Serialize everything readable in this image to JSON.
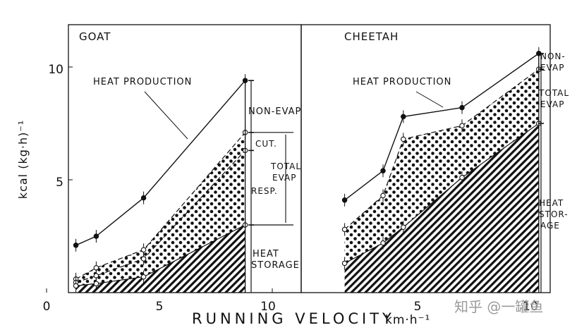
{
  "chart_data": [
    {
      "type": "area",
      "title": "GOAT",
      "xlabel": "RUNNING VELOCITY",
      "xunit": "km·h⁻¹",
      "ylabel": "kcal (kg·h)⁻¹",
      "xlim": [
        0,
        11.5
      ],
      "ylim": [
        0,
        11.8
      ],
      "xticks": [
        "0",
        "5",
        "10"
      ],
      "yticks": [
        "5",
        "10"
      ],
      "series": [
        {
          "name": "HEAT PRODUCTION",
          "x": [
            1.3,
            2.2,
            4.3,
            8.8
          ],
          "y": [
            2.1,
            2.5,
            4.2,
            9.4
          ]
        },
        {
          "x": [
            1.3,
            2.2,
            4.3,
            8.8
          ],
          "y": [
            0.6,
            1.1,
            1.9,
            7.1
          ]
        },
        {
          "x": [
            1.3,
            2.2,
            4.3,
            8.8
          ],
          "y": [
            0.45,
            0.75,
            1.5,
            6.3
          ]
        },
        {
          "x": [
            1.3,
            2.2,
            4.3,
            8.8
          ],
          "y": [
            0.3,
            0.4,
            0.7,
            3.0
          ]
        }
      ],
      "annotations": [
        "HEAT PRODUCTION",
        "NON-EVAP",
        "CUT.",
        "TOTAL EVAP",
        "RESP.",
        "HEAT STORAGE"
      ]
    },
    {
      "type": "area",
      "title": "CHEETAH",
      "xlabel": "RUNNING VELOCITY",
      "xunit": "km·h⁻¹",
      "xlim": [
        0,
        11.5
      ],
      "ylim": [
        0,
        11.8
      ],
      "xticks": [
        "5",
        "10"
      ],
      "series": [
        {
          "name": "HEAT PRODUCTION",
          "x": [
            1.8,
            3.5,
            4.4,
            7.0,
            10.4
          ],
          "y": [
            4.1,
            5.4,
            7.8,
            8.2,
            10.6
          ]
        },
        {
          "x": [
            1.8,
            3.5,
            4.4,
            7.0,
            10.4
          ],
          "y": [
            2.8,
            4.3,
            6.8,
            7.4,
            9.9
          ]
        },
        {
          "x": [
            1.8,
            3.5,
            4.4,
            7.0,
            10.4
          ],
          "y": [
            1.3,
            2.2,
            2.9,
            5.1,
            7.5
          ]
        }
      ],
      "annotations": [
        "HEAT PRODUCTION",
        "NON-EVAP",
        "TOTAL EVAP",
        "HEAT STORAGE"
      ]
    }
  ],
  "watermark": "知乎 @一罐鱼"
}
